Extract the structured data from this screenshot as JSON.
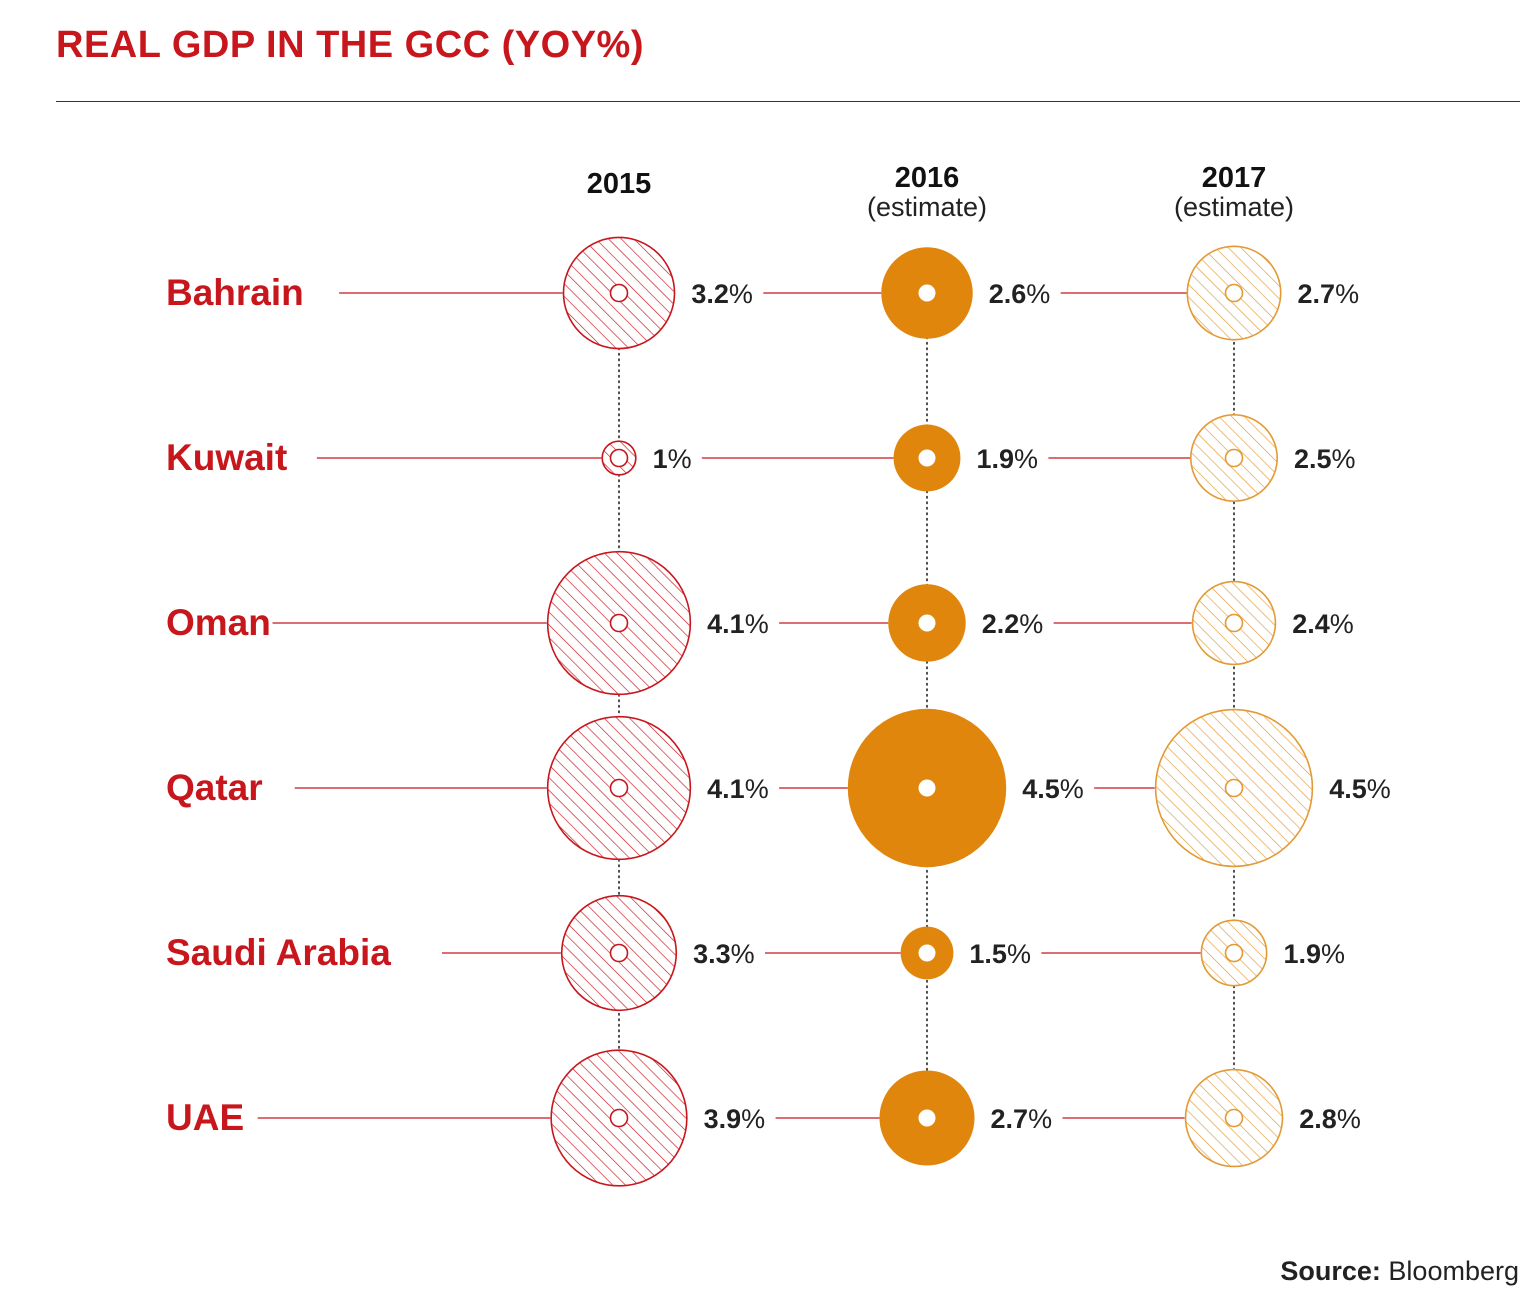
{
  "title": "REAL GDP IN THE GCC (YOY%)",
  "source": {
    "label": "Source:",
    "value": "Bloomberg"
  },
  "colors": {
    "title": "#c8161d",
    "col2015": "#c8161d",
    "col2016": "#e0860d",
    "col2017": "#e39a34"
  },
  "chart_data": {
    "type": "bubble",
    "columns": [
      {
        "year": "2015",
        "note": "",
        "style": "hatched"
      },
      {
        "year": "2016",
        "note": "(estimate)",
        "style": "solid"
      },
      {
        "year": "2017",
        "note": "(estimate)",
        "style": "hatched"
      }
    ],
    "series": [
      {
        "country": "Bahrain",
        "values": [
          3.2,
          2.6,
          2.7
        ],
        "labels": [
          "3.2%",
          "2.6%",
          "2.7%"
        ]
      },
      {
        "country": "Kuwait",
        "values": [
          1,
          1.9,
          2.5
        ],
        "labels": [
          "1%",
          "1.9%",
          "2.5%"
        ]
      },
      {
        "country": "Oman",
        "values": [
          4.1,
          2.2,
          2.4
        ],
        "labels": [
          "4.1%",
          "2.2%",
          "2.4%"
        ]
      },
      {
        "country": "Qatar",
        "values": [
          4.1,
          4.5,
          4.5
        ],
        "labels": [
          "4.1%",
          "4.5%",
          "4.5%"
        ]
      },
      {
        "country": "Saudi Arabia",
        "values": [
          3.3,
          1.5,
          1.9
        ],
        "labels": [
          "3.3%",
          "1.5%",
          "1.9%"
        ]
      },
      {
        "country": "UAE",
        "values": [
          3.9,
          2.7,
          2.8
        ],
        "labels": [
          "3.9%",
          "2.7%",
          "2.8%"
        ]
      }
    ]
  }
}
